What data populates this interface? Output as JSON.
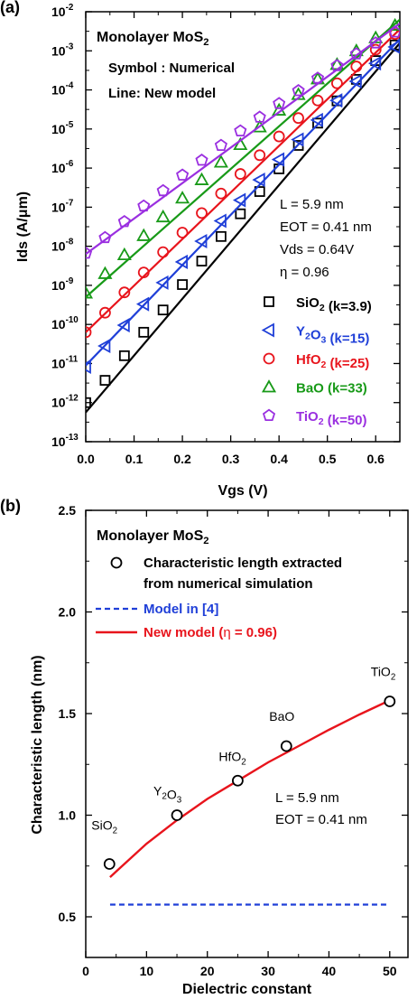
{
  "chart_data": [
    {
      "panel_label": "(a)",
      "type": "line",
      "title": "Monolayer MoS",
      "title_sub": "2",
      "annotation_symbol": "Symbol : Numerical",
      "annotation_line": "Line: New model",
      "params": [
        "L = 5.9 nm",
        "EOT = 0.41 nm",
        "Vds = 0.64V",
        "η = 0.96"
      ],
      "xlabel": "Vgs (V)",
      "ylabel": "Ids (A/μm)",
      "xlim": [
        0,
        0.65
      ],
      "ylim_log10": [
        -13,
        -2
      ],
      "yscale": "log",
      "xticks": [
        "0.0",
        "0.1",
        "0.2",
        "0.3",
        "0.4",
        "0.5",
        "0.6"
      ],
      "ytick_exponents": [
        "-13",
        "-12",
        "-11",
        "-10",
        "-9",
        "-8",
        "-7",
        "-6",
        "-5",
        "-4",
        "-3",
        "-2"
      ],
      "ytick_base": "10",
      "series": [
        {
          "name": "SiO",
          "sub": "2",
          "tail": " (k=3.9)",
          "color": "#000000",
          "marker": "square",
          "x": [
            0,
            0.04,
            0.08,
            0.12,
            0.16,
            0.2,
            0.24,
            0.28,
            0.32,
            0.36,
            0.4,
            0.44,
            0.48,
            0.52,
            0.56,
            0.6,
            0.64
          ],
          "y_log10": [
            -12,
            -11.43,
            -10.8,
            -10.2,
            -9.63,
            -8.98,
            -8.38,
            -7.75,
            -7.17,
            -6.6,
            -6.02,
            -5.42,
            -4.85,
            -4.28,
            -3.73,
            -3.25,
            -2.85
          ],
          "line_x": [
            0,
            0.65
          ],
          "line_y_log10": [
            -12.25,
            -2.8
          ]
        },
        {
          "name": "Y",
          "sub": "2",
          "mid": "O",
          "sub2": "3",
          "tail": " (k=15)",
          "color": "#1f3fd8",
          "marker": "triangle-left",
          "x": [
            0,
            0.04,
            0.08,
            0.12,
            0.16,
            0.2,
            0.24,
            0.28,
            0.32,
            0.36,
            0.4,
            0.44,
            0.48,
            0.52,
            0.56,
            0.6,
            0.64
          ],
          "y_log10": [
            -11.08,
            -10.55,
            -10.02,
            -9.48,
            -8.93,
            -8.4,
            -7.87,
            -7.35,
            -6.82,
            -6.3,
            -5.78,
            -5.27,
            -4.77,
            -4.27,
            -3.78,
            -3.32,
            -2.9
          ],
          "line_x": [
            0,
            0.65
          ],
          "line_y_log10": [
            -11.05,
            -2.7
          ]
        },
        {
          "name": "HfO",
          "sub": "2",
          "tail": " (k=25)",
          "color": "#e8141c",
          "marker": "circle",
          "x": [
            0,
            0.04,
            0.08,
            0.12,
            0.16,
            0.2,
            0.24,
            0.28,
            0.32,
            0.36,
            0.4,
            0.44,
            0.48,
            0.52,
            0.56,
            0.6,
            0.64
          ],
          "y_log10": [
            -10.2,
            -9.7,
            -9.18,
            -8.67,
            -8.15,
            -7.65,
            -7.15,
            -6.65,
            -6.15,
            -5.67,
            -5.19,
            -4.72,
            -4.27,
            -3.83,
            -3.4,
            -2.97,
            -2.57
          ],
          "line_x": [
            0,
            0.65
          ],
          "line_y_log10": [
            -10.2,
            -2.45
          ]
        },
        {
          "name": "BaO",
          "tail": " (k=33)",
          "color": "#189a18",
          "marker": "triangle-up",
          "x": [
            0,
            0.04,
            0.08,
            0.12,
            0.16,
            0.2,
            0.24,
            0.28,
            0.32,
            0.36,
            0.4,
            0.44,
            0.48,
            0.52,
            0.56,
            0.6,
            0.64
          ],
          "y_log10": [
            -9.2,
            -8.7,
            -8.22,
            -7.73,
            -7.25,
            -6.77,
            -6.3,
            -5.85,
            -5.4,
            -4.95,
            -4.52,
            -4.12,
            -3.72,
            -3.35,
            -3.0,
            -2.67,
            -2.35
          ],
          "line_x": [
            0,
            0.65
          ],
          "line_y_log10": [
            -9.3,
            -2.2
          ]
        },
        {
          "name": "TiO",
          "sub": "2",
          "tail": " (k=50)",
          "color": "#9a2fe0",
          "marker": "pentagon",
          "x": [
            0,
            0.04,
            0.08,
            0.12,
            0.16,
            0.2,
            0.24,
            0.28,
            0.32,
            0.36,
            0.4,
            0.44,
            0.48,
            0.52,
            0.56,
            0.6,
            0.64
          ],
          "y_log10": [
            -8.18,
            -7.78,
            -7.37,
            -6.97,
            -6.58,
            -6.18,
            -5.8,
            -5.42,
            -5.05,
            -4.7,
            -4.35,
            -4.02,
            -3.7,
            -3.38,
            -3.08,
            -2.8,
            -2.52
          ],
          "line_x": [
            0,
            0.65
          ],
          "line_y_log10": [
            -8.2,
            -2.3
          ]
        }
      ]
    },
    {
      "panel_label": "(b)",
      "type": "scatter",
      "title": "Monolayer MoS",
      "title_sub": "2",
      "xlabel": "Dielectric constant",
      "ylabel": "Characteristic length (nm)",
      "xlim": [
        0,
        53
      ],
      "ylim": [
        0.3,
        2.5
      ],
      "xticks": [
        "0",
        "10",
        "20",
        "30",
        "40",
        "50"
      ],
      "yticks": [
        "0.5",
        "1.0",
        "1.5",
        "2.0",
        "2.5"
      ],
      "legend": [
        {
          "label_line1": "Characteristic length extracted",
          "label_line2": "from numerical simulation",
          "color": "#000000",
          "kind": "circle"
        },
        {
          "label": "Model in [4]",
          "color": "#1f3fd8",
          "kind": "dashed"
        },
        {
          "label_pre": "New model (",
          "label_eta": "η",
          "label_post": " = 0.96)",
          "color": "#e8141c",
          "kind": "solid"
        }
      ],
      "points": {
        "x": [
          3.9,
          15,
          25,
          33,
          50
        ],
        "y": [
          0.76,
          1.0,
          1.17,
          1.34,
          1.56
        ]
      },
      "point_labels": [
        {
          "text": "SiO",
          "sub": "2",
          "x": 3.9,
          "y": 0.76
        },
        {
          "text": "Y",
          "sub": "2",
          "mid": "O",
          "sub2": "3",
          "x": 15,
          "y": 1.0
        },
        {
          "text": "HfO",
          "sub": "2",
          "x": 25,
          "y": 1.17
        },
        {
          "text": "BaO",
          "x": 33,
          "y": 1.34
        },
        {
          "text": "TiO",
          "sub": "2",
          "x": 50,
          "y": 1.56
        }
      ],
      "model_line": {
        "x": [
          4,
          10,
          15,
          20,
          25,
          30,
          35,
          40,
          45,
          50
        ],
        "y": [
          0.695,
          0.86,
          0.975,
          1.08,
          1.17,
          1.26,
          1.34,
          1.42,
          1.495,
          1.565
        ]
      },
      "old_model": {
        "x": [
          4,
          50
        ],
        "y": [
          0.56,
          0.56
        ]
      },
      "params": [
        "L = 5.9 nm",
        "EOT = 0.41 nm"
      ]
    }
  ]
}
